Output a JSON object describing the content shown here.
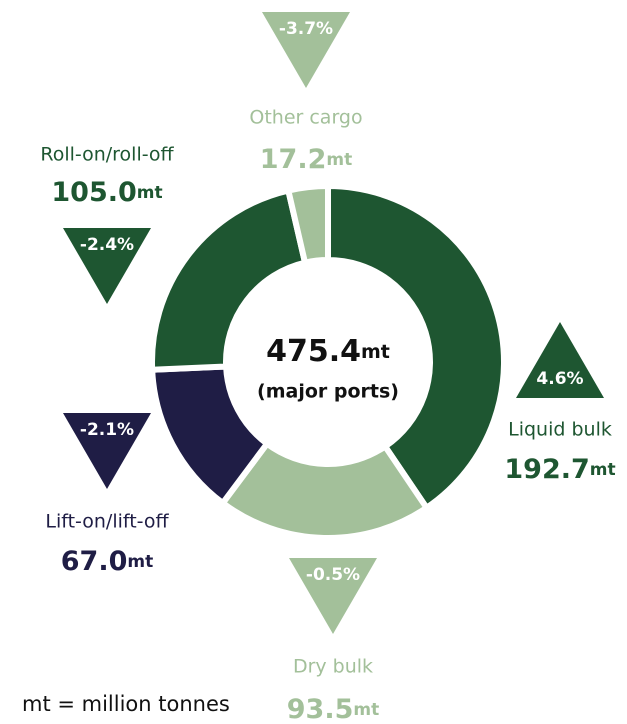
{
  "chart_data": {
    "type": "donut",
    "categories": [
      "Liquid bulk",
      "Dry bulk",
      "Lift-on/lift-off",
      "Roll-on/roll-off",
      "Other cargo"
    ],
    "values": [
      192.7,
      93.5,
      67.0,
      105.0,
      17.2
    ],
    "value_labels": [
      "192.7",
      "93.5",
      "67.0",
      "105.0",
      "17.2"
    ],
    "unit": "mt",
    "colors": [
      "#1e5631",
      "#a3c09a",
      "#1f1d45",
      "#1e5631",
      "#a3c09a"
    ],
    "changes": {
      "values": [
        4.6,
        -0.5,
        -2.1,
        -2.4,
        -3.7
      ],
      "value_labels": [
        "4.6%",
        "-0.5%",
        "-2.1%",
        "-2.4%",
        "-3.7%"
      ]
    },
    "center_value": 475.4,
    "center_label": "(major ports)",
    "footnote": "mt = million tonnes"
  }
}
